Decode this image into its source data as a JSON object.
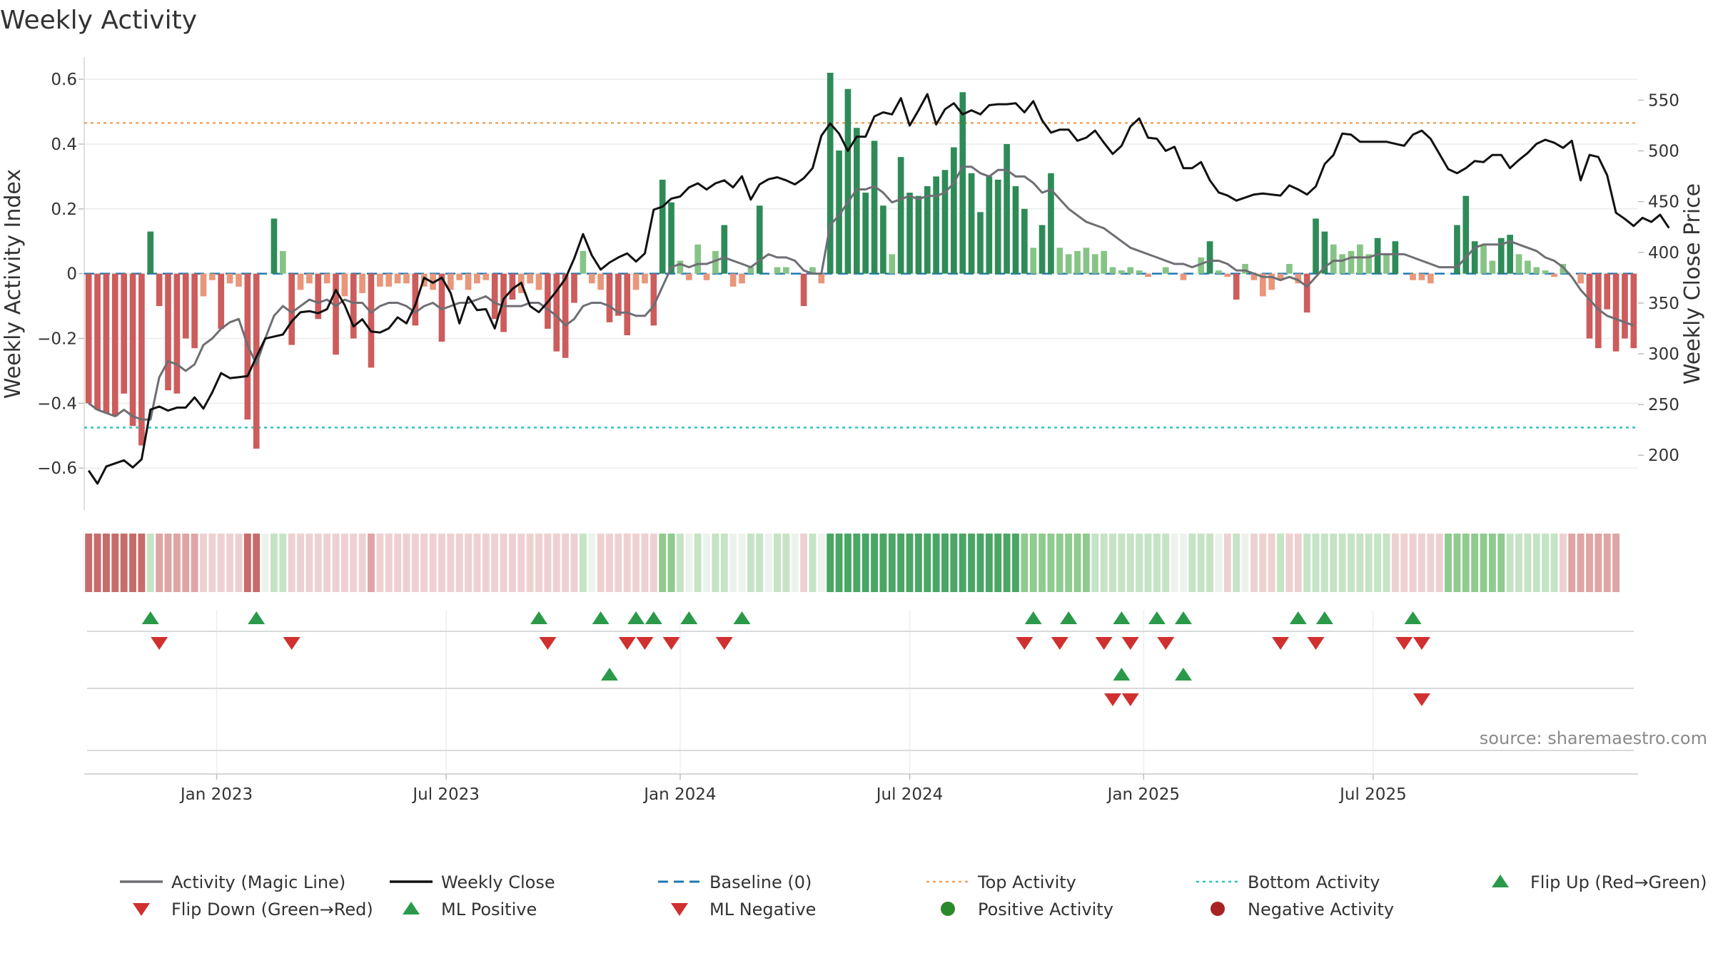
{
  "chart_data": {
    "type": "bar",
    "title": "Weekly Activity",
    "ylabel": "Weekly Activity Index",
    "y2label": "Weekly Close Price",
    "ylim": [
      -0.67,
      0.62
    ],
    "y2lim": [
      165,
      577
    ],
    "yticks": [
      -0.6,
      -0.4,
      -0.2,
      0,
      0.2,
      0.4,
      0.6
    ],
    "yticklabels": [
      "−0.6",
      "−0.4",
      "−0.2",
      "0",
      "0.2",
      "0.4",
      "0.6"
    ],
    "y2ticks": [
      200,
      250,
      300,
      350,
      400,
      450,
      500,
      550
    ],
    "y2ticklabels": [
      "200",
      "250",
      "300",
      "350",
      "400",
      "450",
      "500",
      "550"
    ],
    "xticks": [
      {
        "label": "Jan 2023",
        "week": 15
      },
      {
        "label": "Jul 2023",
        "week": 41
      },
      {
        "label": "Jan 2024",
        "week": 67.5
      },
      {
        "label": "Jul 2024",
        "week": 93.5
      },
      {
        "label": "Jan 2025",
        "week": 120
      },
      {
        "label": "Jul 2025",
        "week": 146
      }
    ],
    "top_activity": 0.465,
    "bottom_activity": -0.475,
    "baseline": 0,
    "activity": [
      -0.4,
      -0.42,
      -0.43,
      -0.44,
      -0.37,
      -0.47,
      -0.53,
      0.13,
      -0.1,
      -0.36,
      -0.37,
      -0.2,
      -0.23,
      -0.07,
      -0.02,
      -0.17,
      -0.03,
      -0.04,
      -0.45,
      -0.54,
      0.0,
      0.17,
      0.07,
      -0.22,
      -0.05,
      -0.03,
      -0.14,
      -0.03,
      -0.25,
      -0.07,
      -0.2,
      -0.06,
      -0.29,
      -0.04,
      -0.04,
      -0.03,
      -0.03,
      -0.16,
      -0.04,
      -0.05,
      -0.21,
      -0.05,
      -0.02,
      -0.05,
      -0.03,
      -0.02,
      -0.14,
      -0.18,
      -0.08,
      -0.06,
      -0.03,
      -0.05,
      -0.17,
      -0.24,
      -0.26,
      -0.09,
      0.07,
      -0.03,
      -0.05,
      -0.15,
      -0.13,
      -0.19,
      -0.05,
      -0.03,
      -0.16,
      0.29,
      0.22,
      0.04,
      -0.02,
      0.09,
      -0.02,
      0.07,
      0.15,
      -0.04,
      -0.03,
      0.02,
      0.21,
      0.0,
      0.02,
      0.02,
      0.0,
      -0.1,
      0.02,
      -0.03,
      0.62,
      0.38,
      0.57,
      0.45,
      0.25,
      0.41,
      0.21,
      0.06,
      0.36,
      0.25,
      0.24,
      0.27,
      0.3,
      0.32,
      0.39,
      0.56,
      0.31,
      0.19,
      0.3,
      0.29,
      0.4,
      0.27,
      0.2,
      0.08,
      0.15,
      0.31,
      0.08,
      0.06,
      0.07,
      0.08,
      0.06,
      0.07,
      0.02,
      0.01,
      0.02,
      0.01,
      -0.01,
      0.0,
      0.02,
      0.0,
      -0.02,
      0.0,
      0.05,
      0.1,
      0.01,
      -0.01,
      -0.08,
      0.03,
      -0.02,
      -0.07,
      -0.05,
      -0.02,
      0.03,
      -0.03,
      -0.12,
      0.17,
      0.13,
      0.09,
      0.06,
      0.07,
      0.09,
      0.06,
      0.11,
      0.06,
      0.1,
      0.0,
      -0.02,
      -0.02,
      -0.03,
      0.0,
      0.0,
      0.15,
      0.24,
      0.1,
      0.09,
      0.04,
      0.11,
      0.12,
      0.06,
      0.04,
      0.02,
      0.01,
      -0.01,
      0.03,
      0.0,
      -0.03,
      -0.2,
      -0.23,
      -0.11,
      -0.24,
      -0.2,
      -0.23
    ],
    "magic_line": [
      -0.4,
      -0.42,
      -0.43,
      -0.44,
      -0.42,
      -0.44,
      -0.45,
      -0.45,
      -0.32,
      -0.27,
      -0.28,
      -0.3,
      -0.28,
      -0.22,
      -0.2,
      -0.17,
      -0.15,
      -0.14,
      -0.22,
      -0.28,
      -0.2,
      -0.13,
      -0.1,
      -0.12,
      -0.1,
      -0.08,
      -0.09,
      -0.08,
      -0.1,
      -0.08,
      -0.09,
      -0.09,
      -0.12,
      -0.1,
      -0.09,
      -0.09,
      -0.1,
      -0.12,
      -0.1,
      -0.09,
      -0.11,
      -0.1,
      -0.09,
      -0.09,
      -0.08,
      -0.07,
      -0.09,
      -0.1,
      -0.1,
      -0.1,
      -0.09,
      -0.09,
      -0.11,
      -0.13,
      -0.16,
      -0.14,
      -0.1,
      -0.09,
      -0.09,
      -0.1,
      -0.12,
      -0.12,
      -0.13,
      -0.13,
      -0.1,
      -0.04,
      0.02,
      0.03,
      0.02,
      0.03,
      0.03,
      0.04,
      0.05,
      0.04,
      0.03,
      0.02,
      0.04,
      0.06,
      0.05,
      0.05,
      0.04,
      0.01,
      0.0,
      0.0,
      0.15,
      0.18,
      0.22,
      0.26,
      0.26,
      0.27,
      0.25,
      0.22,
      0.23,
      0.24,
      0.23,
      0.24,
      0.24,
      0.25,
      0.28,
      0.33,
      0.33,
      0.31,
      0.3,
      0.32,
      0.32,
      0.3,
      0.3,
      0.28,
      0.25,
      0.26,
      0.23,
      0.2,
      0.18,
      0.16,
      0.15,
      0.14,
      0.12,
      0.1,
      0.08,
      0.07,
      0.06,
      0.05,
      0.04,
      0.03,
      0.03,
      0.02,
      0.03,
      0.04,
      0.04,
      0.03,
      0.01,
      0.01,
      0.0,
      -0.01,
      -0.01,
      -0.02,
      -0.01,
      -0.02,
      -0.04,
      -0.01,
      0.02,
      0.04,
      0.04,
      0.05,
      0.05,
      0.05,
      0.06,
      0.06,
      0.06,
      0.06,
      0.05,
      0.04,
      0.03,
      0.02,
      0.02,
      0.02,
      0.05,
      0.08,
      0.09,
      0.09,
      0.09,
      0.1,
      0.09,
      0.08,
      0.07,
      0.05,
      0.04,
      0.02,
      -0.01,
      -0.05,
      -0.08,
      -0.11,
      -0.13,
      -0.14,
      -0.15,
      -0.16
    ],
    "weekly_close": [
      185,
      172,
      189,
      192,
      195,
      188,
      196,
      245,
      248,
      244,
      247,
      247,
      257,
      246,
      262,
      281,
      276,
      277,
      278,
      297,
      315,
      317,
      319,
      332,
      341,
      342,
      340,
      344,
      363,
      348,
      327,
      334,
      322,
      321,
      325,
      336,
      330,
      348,
      375,
      370,
      375,
      360,
      330,
      356,
      343,
      344,
      325,
      354,
      364,
      370,
      347,
      341,
      351,
      362,
      374,
      394,
      418,
      397,
      383,
      390,
      395,
      399,
      391,
      399,
      442,
      445,
      453,
      455,
      464,
      468,
      462,
      468,
      471,
      464,
      475,
      452,
      467,
      472,
      474,
      471,
      467,
      473,
      483,
      515,
      527,
      517,
      500,
      514,
      514,
      534,
      538,
      536,
      552,
      525,
      540,
      556,
      526,
      541,
      547,
      536,
      540,
      536,
      545,
      546,
      546,
      547,
      538,
      549,
      530,
      518,
      521,
      521,
      510,
      513,
      520,
      508,
      497,
      505,
      524,
      532,
      513,
      512,
      500,
      504,
      483,
      483,
      489,
      471,
      459,
      456,
      451,
      454,
      457,
      458,
      457,
      456,
      466,
      462,
      457,
      465,
      487,
      496,
      517,
      516,
      509,
      509,
      509,
      509,
      507,
      505,
      516,
      520,
      512,
      497,
      482,
      478,
      483,
      490,
      489,
      496,
      496,
      483,
      491,
      498,
      507,
      511,
      508,
      503,
      510,
      471,
      496,
      494,
      476,
      439,
      433,
      426,
      434,
      430,
      437,
      424
    ],
    "heat_levels": [
      -3,
      -3,
      -3,
      -3,
      -3,
      -3,
      -3,
      1,
      -2,
      -2,
      -2,
      -2,
      -2,
      -1,
      -1,
      -1,
      -1,
      -1,
      -3,
      -3,
      0,
      1,
      1,
      -1,
      -1,
      -1,
      -1,
      -1,
      -1,
      -1,
      -1,
      -1,
      -2,
      -1,
      -1,
      -1,
      -1,
      -1,
      -1,
      -1,
      -1,
      -1,
      -1,
      -1,
      -1,
      -1,
      -1,
      -1,
      -1,
      -1,
      -1,
      -1,
      -1,
      -1,
      -1,
      -1,
      1,
      0,
      -1,
      -1,
      -1,
      -1,
      -1,
      -1,
      -1,
      2,
      2,
      1,
      0,
      1,
      0,
      1,
      1,
      0,
      0,
      1,
      1,
      0,
      1,
      1,
      0,
      -1,
      1,
      0,
      3,
      3,
      3,
      3,
      3,
      3,
      3,
      3,
      3,
      3,
      3,
      3,
      3,
      3,
      3,
      3,
      3,
      3,
      3,
      3,
      3,
      3,
      2,
      2,
      2,
      2,
      2,
      2,
      2,
      2,
      1,
      1,
      1,
      1,
      1,
      1,
      1,
      1,
      1,
      0,
      0,
      1,
      1,
      1,
      0,
      -1,
      1,
      0,
      -1,
      -1,
      -1,
      1,
      -1,
      -1,
      1,
      1,
      1,
      1,
      1,
      1,
      1,
      1,
      1,
      1,
      -1,
      -1,
      -1,
      -1,
      -1,
      -1,
      2,
      2,
      2,
      2,
      2,
      2,
      2,
      1,
      1,
      1,
      1,
      1,
      1,
      -1,
      -2,
      -2,
      -2,
      -2,
      -2,
      -2
    ],
    "flip_up": [
      7,
      19,
      51,
      58,
      62,
      64,
      68,
      74,
      107,
      111,
      117,
      121,
      124,
      137,
      140,
      150
    ],
    "flip_down": [
      8,
      23,
      52,
      61,
      63,
      66,
      72,
      106,
      110,
      115,
      118,
      122,
      135,
      139,
      149,
      151
    ],
    "ml_positive": [
      59,
      117,
      124
    ],
    "ml_negative": [
      116,
      118,
      151
    ],
    "source": "source: sharemaestro.com",
    "legend": [
      {
        "label": "Activity (Magic Line)",
        "kind": "line",
        "color": "#6e6e74"
      },
      {
        "label": "Weekly Close",
        "kind": "line",
        "color": "#111111"
      },
      {
        "label": "Baseline (0)",
        "kind": "dash",
        "color": "#1f77b4"
      },
      {
        "label": "Top Activity",
        "kind": "dot",
        "color": "#f0a35e"
      },
      {
        "label": "Bottom Activity",
        "kind": "dot",
        "color": "#2ec4c4"
      },
      {
        "label": "Flip Up (Red→Green)",
        "kind": "tri-up",
        "color": "#2a9a4a"
      },
      {
        "label": "Flip Down (Green→Red)",
        "kind": "tri-down",
        "color": "#d0302f"
      },
      {
        "label": "ML Positive",
        "kind": "tri-up",
        "color": "#2a9a4a"
      },
      {
        "label": "ML Negative",
        "kind": "tri-down",
        "color": "#d0302f"
      },
      {
        "label": "Positive Activity",
        "kind": "circle",
        "color": "#2a8a2a"
      },
      {
        "label": "Negative Activity",
        "kind": "circle",
        "color": "#a82424"
      }
    ],
    "colors": {
      "pos_strong": "#2e8b57",
      "pos_light": "#86c486",
      "neg_strong": "#cd5c5c",
      "neg_light": "#e9967a",
      "magic_line": "#6e6e74",
      "close": "#111111",
      "baseline": "#1f77b4",
      "top": "#f0a35e",
      "bottom": "#2ec4c4",
      "tri_up": "#2a9a4a",
      "tri_down": "#d0302f"
    }
  }
}
